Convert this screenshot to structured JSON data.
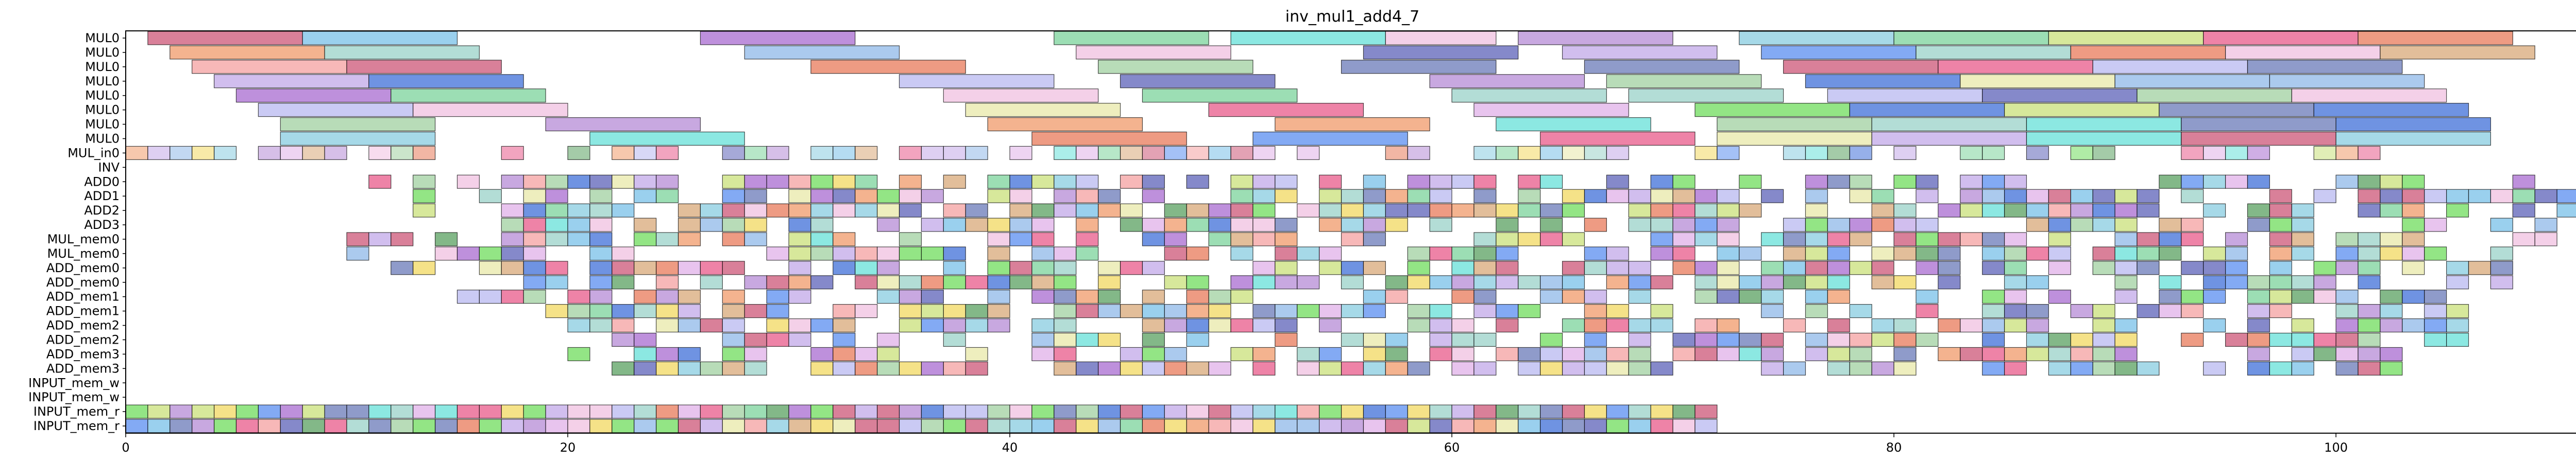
{
  "chart_data": {
    "type": "gantt",
    "title": "inv_mul1_add4_7",
    "xlabel": "",
    "ylabel": "",
    "xlim": [
      0,
      111
    ],
    "xticks": [
      0,
      20,
      40,
      60,
      80,
      100
    ],
    "grid": false,
    "rows": [
      "MUL0",
      "MUL0",
      "MUL0",
      "MUL0",
      "MUL0",
      "MUL0",
      "MUL0",
      "MUL0",
      "MUL_in0",
      "INV",
      "ADD0",
      "ADD1",
      "ADD2",
      "ADD3",
      "MUL_mem0",
      "MUL_mem0",
      "ADD_mem0",
      "ADD_mem0",
      "ADD_mem1",
      "ADD_mem1",
      "ADD_mem2",
      "ADD_mem2",
      "ADD_mem3",
      "ADD_mem3",
      "INPUT_mem_w",
      "INPUT_mem_w",
      "INPUT_mem_r",
      "INPUT_mem_r"
    ],
    "bar_rows": [
      {
        "row": 0,
        "bars": [
          [
            1,
            8
          ],
          [
            8,
            15
          ],
          [
            26,
            33
          ],
          [
            42,
            49
          ],
          [
            50,
            57
          ],
          [
            57,
            62
          ],
          [
            63,
            70
          ],
          [
            73,
            80
          ],
          [
            80,
            87
          ],
          [
            87,
            94
          ],
          [
            94,
            101
          ],
          [
            101,
            108
          ]
        ]
      },
      {
        "row": 1,
        "bars": [
          [
            2,
            9
          ],
          [
            9,
            16
          ],
          [
            28,
            35
          ],
          [
            43,
            50
          ],
          [
            56,
            63
          ],
          [
            65,
            72
          ],
          [
            74,
            81
          ],
          [
            81,
            88
          ],
          [
            88,
            95
          ],
          [
            95,
            102
          ],
          [
            102,
            109
          ]
        ]
      },
      {
        "row": 2,
        "bars": [
          [
            3,
            10
          ],
          [
            10,
            17
          ],
          [
            31,
            38
          ],
          [
            44,
            51
          ],
          [
            55,
            62
          ],
          [
            66,
            73
          ],
          [
            75,
            82
          ],
          [
            82,
            89
          ],
          [
            89,
            96
          ],
          [
            96,
            103
          ]
        ]
      },
      {
        "row": 3,
        "bars": [
          [
            4,
            11
          ],
          [
            11,
            18
          ],
          [
            35,
            42
          ],
          [
            45,
            52
          ],
          [
            59,
            66
          ],
          [
            67,
            74
          ],
          [
            76,
            83
          ],
          [
            83,
            90
          ],
          [
            90,
            97
          ],
          [
            97,
            104
          ]
        ]
      },
      {
        "row": 4,
        "bars": [
          [
            5,
            12
          ],
          [
            12,
            19
          ],
          [
            37,
            44
          ],
          [
            46,
            53
          ],
          [
            60,
            67
          ],
          [
            68,
            75
          ],
          [
            77,
            84
          ],
          [
            84,
            91
          ],
          [
            91,
            98
          ],
          [
            98,
            105
          ]
        ]
      },
      {
        "row": 5,
        "bars": [
          [
            6,
            13
          ],
          [
            13,
            20
          ],
          [
            38,
            45
          ],
          [
            49,
            56
          ],
          [
            61,
            68
          ],
          [
            71,
            78
          ],
          [
            78,
            85
          ],
          [
            85,
            92
          ],
          [
            92,
            99
          ],
          [
            99,
            106
          ]
        ]
      },
      {
        "row": 6,
        "bars": [
          [
            7,
            14
          ],
          [
            19,
            26
          ],
          [
            39,
            46
          ],
          [
            52,
            59
          ],
          [
            62,
            69
          ],
          [
            72,
            79
          ],
          [
            79,
            86
          ],
          [
            86,
            93
          ],
          [
            93,
            100
          ],
          [
            100,
            107
          ]
        ]
      },
      {
        "row": 7,
        "bars": [
          [
            7,
            14
          ],
          [
            21,
            28
          ],
          [
            41,
            48
          ],
          [
            51,
            58
          ],
          [
            64,
            71
          ],
          [
            72,
            79
          ],
          [
            79,
            86
          ],
          [
            86,
            93
          ],
          [
            93,
            100
          ],
          [
            100,
            107
          ]
        ]
      }
    ]
  }
}
